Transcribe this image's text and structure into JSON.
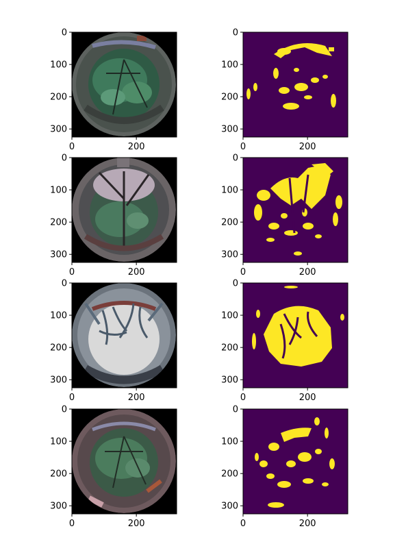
{
  "figure": {
    "rows": 4,
    "columns": 2,
    "image_extent": [
      0,
      325
    ],
    "x_ticks": [
      0,
      200
    ],
    "y_ticks": [
      0,
      100,
      200,
      300
    ],
    "panels": [
      {
        "row": 0,
        "col": 0,
        "kind": "fisheye-photo",
        "tone": "green-canopy",
        "x_tick_labels": [
          "0",
          "200"
        ],
        "y_tick_labels": [
          "0",
          "100",
          "200",
          "300"
        ]
      },
      {
        "row": 0,
        "col": 1,
        "kind": "binary-sky-mask",
        "x_tick_labels": [
          "0",
          "200"
        ],
        "y_tick_labels": [
          "0",
          "100",
          "200",
          "300"
        ]
      },
      {
        "row": 1,
        "col": 0,
        "kind": "fisheye-photo",
        "tone": "green-canopy-dusk",
        "x_tick_labels": [
          "0",
          "200"
        ],
        "y_tick_labels": [
          "0",
          "100",
          "200",
          "300"
        ]
      },
      {
        "row": 1,
        "col": 1,
        "kind": "binary-sky-mask",
        "x_tick_labels": [
          "0",
          "200"
        ],
        "y_tick_labels": [
          "0",
          "100",
          "200",
          "300"
        ]
      },
      {
        "row": 2,
        "col": 0,
        "kind": "fisheye-photo",
        "tone": "bare-branches-bright-sky",
        "x_tick_labels": [
          "0",
          "200"
        ],
        "y_tick_labels": [
          "0",
          "100",
          "200",
          "300"
        ]
      },
      {
        "row": 2,
        "col": 1,
        "kind": "binary-sky-mask",
        "x_tick_labels": [
          "0",
          "200"
        ],
        "y_tick_labels": [
          "0",
          "100",
          "200",
          "300"
        ]
      },
      {
        "row": 3,
        "col": 0,
        "kind": "fisheye-photo",
        "tone": "green-canopy-pink",
        "x_tick_labels": [
          "0",
          "200"
        ],
        "y_tick_labels": [
          "0",
          "100",
          "200",
          "300"
        ]
      },
      {
        "row": 3,
        "col": 1,
        "kind": "binary-sky-mask",
        "x_tick_labels": [
          "0",
          "200"
        ],
        "y_tick_labels": [
          "0",
          "100",
          "200",
          "300"
        ]
      }
    ]
  },
  "colors": {
    "mask_background": "#440154",
    "mask_foreground": "#fde725",
    "photo_background": "#000000",
    "canopy_green": "#3f6b55",
    "sky_white": "#dcdcdc"
  }
}
